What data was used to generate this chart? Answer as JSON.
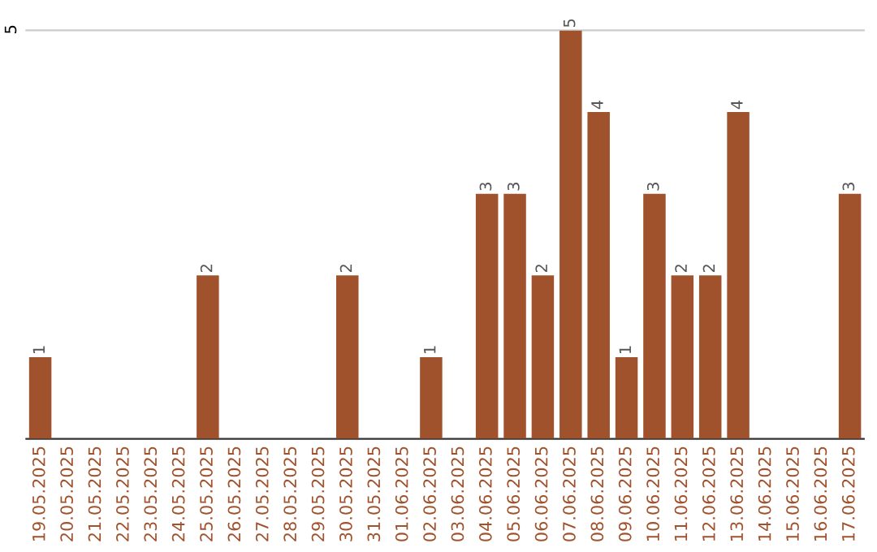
{
  "chart_data": {
    "type": "bar",
    "categories": [
      "19.05.2025",
      "20.05.2025",
      "21.05.2025",
      "22.05.2025",
      "23.05.2025",
      "24.05.2025",
      "25.05.2025",
      "26.05.2025",
      "27.05.2025",
      "28.05.2025",
      "29.05.2025",
      "30.05.2025",
      "31.05.2025",
      "01.06.2025",
      "02.06.2025",
      "03.06.2025",
      "04.06.2025",
      "05.06.2025",
      "06.06.2025",
      "07.06.2025",
      "08.06.2025",
      "09.06.2025",
      "10.06.2025",
      "11.06.2025",
      "12.06.2025",
      "13.06.2025",
      "14.06.2025",
      "15.06.2025",
      "16.06.2025",
      "17.06.2025"
    ],
    "values": [
      1,
      0,
      0,
      0,
      0,
      0,
      2,
      0,
      0,
      0,
      0,
      2,
      0,
      0,
      1,
      0,
      3,
      3,
      2,
      5,
      4,
      1,
      3,
      2,
      2,
      4,
      0,
      0,
      0,
      3
    ],
    "value_labels": [
      "1",
      null,
      null,
      null,
      null,
      null,
      "2",
      null,
      null,
      null,
      null,
      "2",
      null,
      null,
      "1",
      null,
      "3",
      "3",
      "2",
      "5",
      "4",
      "1",
      "3",
      "2",
      "2",
      "4",
      null,
      null,
      null,
      "3"
    ],
    "color": "#a0522d",
    "ylim": [
      0,
      5
    ],
    "yticks": [
      5
    ]
  }
}
